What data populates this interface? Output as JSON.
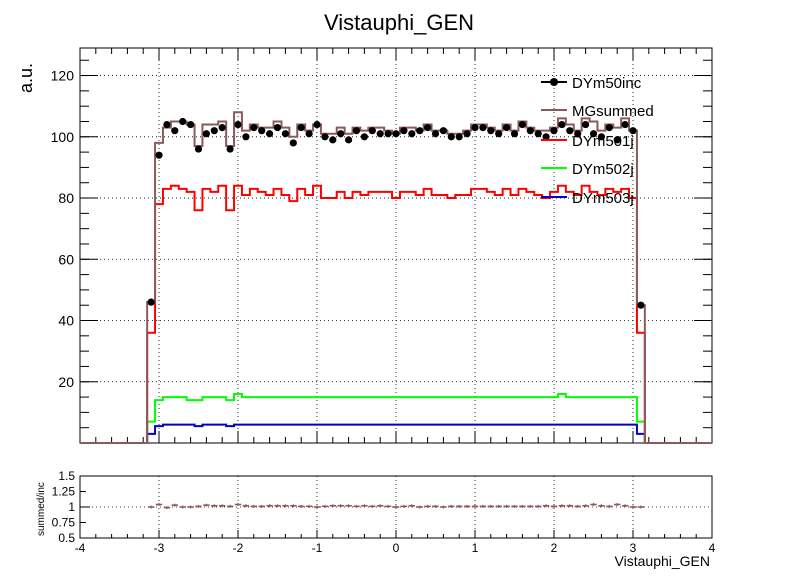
{
  "chart_data": [
    {
      "type": "line",
      "title": "Vistauphi_GEN",
      "ylabel": "a.u.",
      "xlim": [
        -4,
        4
      ],
      "ylim": [
        0,
        129
      ],
      "grid": true,
      "legend_placement": "top-right",
      "x_ticks": [
        "-4",
        "-3",
        "-2",
        "-1",
        "0",
        "1",
        "2",
        "3",
        "4"
      ],
      "y_ticks": [
        "20",
        "40",
        "60",
        "80",
        "100",
        "120"
      ],
      "x_bin_centers": [
        -3.1,
        -3.0,
        -2.9,
        -2.8,
        -2.7,
        -2.6,
        -2.5,
        -2.4,
        -2.3,
        -2.2,
        -2.1,
        -2.0,
        -1.9,
        -1.8,
        -1.7,
        -1.6,
        -1.5,
        -1.4,
        -1.3,
        -1.2,
        -1.1,
        -1.0,
        -0.9,
        -0.8,
        -0.7,
        -0.6,
        -0.5,
        -0.4,
        -0.3,
        -0.2,
        -0.1,
        0.0,
        0.1,
        0.2,
        0.3,
        0.4,
        0.5,
        0.6,
        0.7,
        0.8,
        0.9,
        1.0,
        1.1,
        1.2,
        1.3,
        1.4,
        1.5,
        1.6,
        1.7,
        1.8,
        1.9,
        2.0,
        2.1,
        2.2,
        2.3,
        2.4,
        2.5,
        2.6,
        2.7,
        2.8,
        2.9,
        3.0,
        3.1
      ],
      "series": [
        {
          "name": "DYm50inc",
          "color": "#000000",
          "style": "markers",
          "values": [
            46,
            94,
            104,
            102,
            105,
            104,
            96,
            101,
            102,
            103,
            96,
            104,
            100,
            103,
            102,
            101,
            103,
            101,
            98,
            103,
            101,
            104,
            100,
            99,
            101,
            99,
            102,
            100,
            102,
            101,
            101,
            101,
            102,
            101,
            102,
            103,
            101,
            102,
            100,
            100,
            101,
            103,
            103,
            102,
            101,
            103,
            101,
            104,
            102,
            101,
            100,
            102,
            104,
            102,
            101,
            104,
            101,
            100,
            103,
            99,
            104,
            102,
            45
          ]
        },
        {
          "name": "MGsummed",
          "color": "#8b5a5a",
          "style": "step",
          "values": [
            46,
            98,
            103,
            105,
            105,
            104,
            97,
            104,
            104,
            105,
            97,
            108,
            102,
            104,
            103,
            103,
            105,
            103,
            100,
            104,
            102,
            104,
            101,
            101,
            103,
            101,
            103,
            102,
            103,
            103,
            102,
            101,
            103,
            103,
            102,
            104,
            102,
            102,
            101,
            101,
            102,
            104,
            104,
            103,
            102,
            104,
            102,
            105,
            103,
            102,
            102,
            103,
            106,
            104,
            102,
            106,
            105,
            102,
            104,
            103,
            106,
            102,
            45
          ]
        },
        {
          "name": "DYm501j",
          "color": "#ff0000",
          "style": "step",
          "values": [
            36,
            78,
            83,
            84,
            83,
            82,
            76,
            83,
            82,
            84,
            76,
            84,
            81,
            83,
            82,
            81,
            83,
            81,
            79,
            83,
            81,
            84,
            80,
            80,
            82,
            80,
            82,
            81,
            82,
            82,
            82,
            80,
            82,
            82,
            81,
            83,
            81,
            81,
            80,
            81,
            81,
            83,
            83,
            82,
            81,
            83,
            81,
            83,
            82,
            81,
            80,
            82,
            84,
            82,
            81,
            84,
            82,
            81,
            83,
            82,
            83,
            80,
            36
          ]
        },
        {
          "name": "DYm502j",
          "color": "#00ff00",
          "style": "step",
          "values": [
            7,
            14,
            15,
            15,
            15,
            14,
            14,
            15,
            15,
            15,
            14,
            16,
            15,
            15,
            15,
            15,
            15,
            15,
            15,
            15,
            15,
            15,
            15,
            15,
            15,
            15,
            15,
            15,
            15,
            15,
            15,
            15,
            15,
            15,
            15,
            15,
            15,
            15,
            15,
            15,
            15,
            15,
            15,
            15,
            15,
            15,
            15,
            15,
            15,
            15,
            15,
            15,
            16,
            15,
            15,
            15,
            15,
            15,
            15,
            15,
            15,
            15,
            7
          ]
        },
        {
          "name": "DYm503j",
          "color": "#0000cc",
          "style": "step",
          "values": [
            3,
            5.5,
            6,
            6,
            6,
            6,
            5.5,
            6,
            6,
            6,
            5.5,
            6,
            6,
            6,
            6,
            6,
            6,
            6,
            6,
            6,
            6,
            6,
            6,
            6,
            6,
            6,
            6,
            6,
            6,
            6,
            6,
            6,
            6,
            6,
            6,
            6,
            6,
            6,
            6,
            6,
            6,
            6,
            6,
            6,
            6,
            6,
            6,
            6,
            6,
            6,
            6,
            6,
            6,
            6,
            6,
            6,
            6,
            6,
            6,
            6,
            6,
            6,
            3
          ]
        }
      ]
    },
    {
      "type": "line",
      "ylabel": "summed/inc",
      "xlabel": "Vistauphi_GEN",
      "xlim": [
        -4,
        4
      ],
      "ylim": [
        0.5,
        1.5
      ],
      "grid": true,
      "x_ticks": [
        "-4",
        "-3",
        "-2",
        "-1",
        "0",
        "1",
        "2",
        "3",
        "4"
      ],
      "y_ticks": [
        "0.5",
        "1",
        "1.5"
      ],
      "y_minor_ticks": [
        "0.75",
        "1.25"
      ],
      "series": [
        {
          "name": "",
          "color": "#8b5a5a",
          "style": "markers",
          "values": [
            1.0,
            1.04,
            0.99,
            1.03,
            1.0,
            1.0,
            1.01,
            1.03,
            1.02,
            1.02,
            1.01,
            1.04,
            1.02,
            1.01,
            1.01,
            1.02,
            1.02,
            1.02,
            1.02,
            1.01,
            1.01,
            1.0,
            1.01,
            1.02,
            1.02,
            1.02,
            1.01,
            1.02,
            1.01,
            1.02,
            1.01,
            1.0,
            1.01,
            1.02,
            1.0,
            1.01,
            1.01,
            1.0,
            1.01,
            1.01,
            1.01,
            1.01,
            1.01,
            1.01,
            1.01,
            1.01,
            1.01,
            1.01,
            1.01,
            1.01,
            1.02,
            1.01,
            1.02,
            1.02,
            1.01,
            1.02,
            1.04,
            1.02,
            1.01,
            1.04,
            1.02,
            1.0,
            1.0
          ]
        }
      ]
    }
  ]
}
